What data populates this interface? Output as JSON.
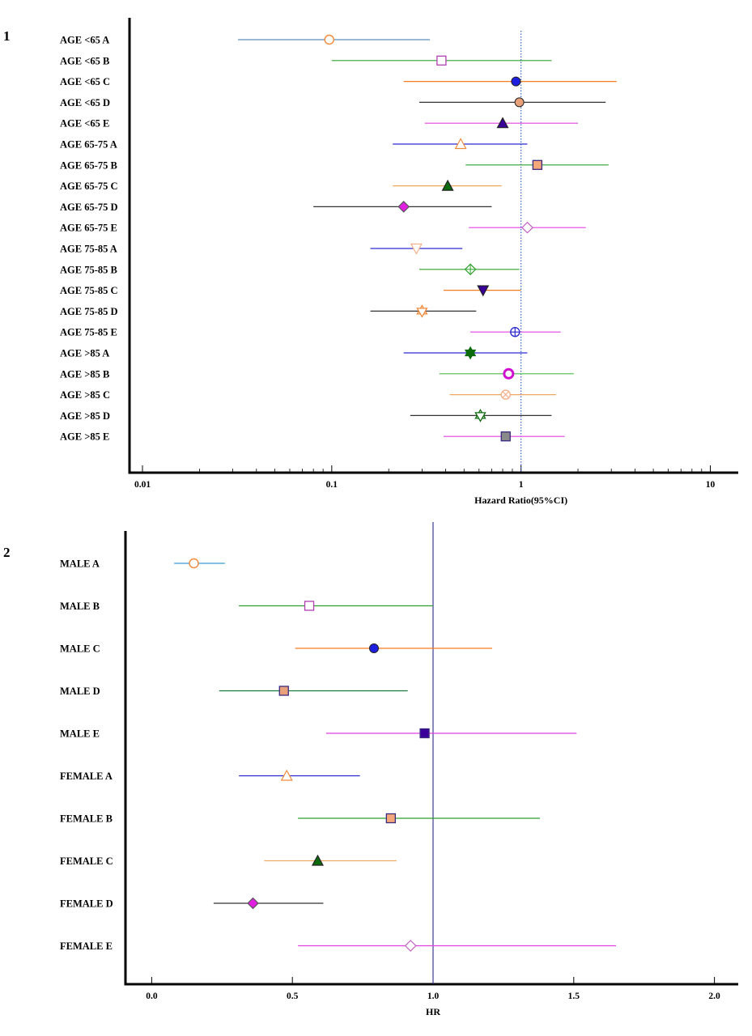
{
  "chart_data": [
    {
      "type": "forest",
      "panel_label": "1",
      "xlabel": "Hazard Ratio(95%CI)",
      "xscale": "log",
      "xlim": [
        0.01,
        12
      ],
      "xticks": [
        0.01,
        0.1,
        1,
        10
      ],
      "xtick_labels": [
        "0.01",
        "0.1",
        "1",
        "10"
      ],
      "reference_line": 1,
      "reference_style": "dotted",
      "rows": [
        {
          "label": "AGE <65 A",
          "hr": 0.097,
          "lo": 0.032,
          "hi": 0.33,
          "line_color": "#5b8fbd",
          "marker": "circle-open",
          "marker_color": "#f08a3c"
        },
        {
          "label": "AGE <65 B",
          "hr": 0.38,
          "lo": 0.1,
          "hi": 1.45,
          "line_color": "#2ca02c",
          "marker": "square-open",
          "marker_color": "#b03fb0"
        },
        {
          "label": "AGE <65 C",
          "hr": 0.94,
          "lo": 0.24,
          "hi": 3.2,
          "line_color": "#f57c1f",
          "marker": "circle-filled",
          "marker_color": "#1f1fe0"
        },
        {
          "label": "AGE <65 D",
          "hr": 0.98,
          "lo": 0.29,
          "hi": 2.8,
          "line_color": "#333333",
          "marker": "circle-filled",
          "marker_color": "#e8a07a"
        },
        {
          "label": "AGE <65 E",
          "hr": 0.8,
          "lo": 0.31,
          "hi": 2.0,
          "line_color": "#e040e0",
          "marker": "triangle-filled",
          "marker_color": "#3a009a"
        },
        {
          "label": "AGE 65-75 A",
          "hr": 0.48,
          "lo": 0.21,
          "hi": 1.08,
          "line_color": "#2a2ad0",
          "marker": "triangle-open",
          "marker_color": "#f08a3c"
        },
        {
          "label": "AGE 65-75 B",
          "hr": 1.22,
          "lo": 0.51,
          "hi": 2.9,
          "line_color": "#2ca02c",
          "marker": "square-filled",
          "marker_color": "#f4a87a"
        },
        {
          "label": "AGE 65-75 C",
          "hr": 0.41,
          "lo": 0.21,
          "hi": 0.79,
          "line_color": "#f0a860",
          "marker": "triangle-filled",
          "marker_color": "#0d6b0d"
        },
        {
          "label": "AGE 65-75 D",
          "hr": 0.24,
          "lo": 0.08,
          "hi": 0.7,
          "line_color": "#333333",
          "marker": "diamond-filled",
          "marker_color": "#e020e0"
        },
        {
          "label": "AGE 65-75 E",
          "hr": 1.08,
          "lo": 0.53,
          "hi": 2.2,
          "line_color": "#e040e0",
          "marker": "diamond-open",
          "marker_color": "#c060c0"
        },
        {
          "label": "AGE 75-85 A",
          "hr": 0.28,
          "lo": 0.16,
          "hi": 0.49,
          "line_color": "#2a2ad0",
          "marker": "triangle-down-open",
          "marker_color": "#f5b08a"
        },
        {
          "label": "AGE 75-85 B",
          "hr": 0.54,
          "lo": 0.29,
          "hi": 0.98,
          "line_color": "#2ca02c",
          "marker": "diamond-cross",
          "marker_color": "#2ca02c"
        },
        {
          "label": "AGE 75-85 C",
          "hr": 0.63,
          "lo": 0.39,
          "hi": 1.0,
          "line_color": "#f57c1f",
          "marker": "triangle-down-filled",
          "marker_color": "#3a009a"
        },
        {
          "label": "AGE 75-85 D",
          "hr": 0.3,
          "lo": 0.16,
          "hi": 0.58,
          "line_color": "#333333",
          "marker": "star-open",
          "marker_color": "#f08a3c"
        },
        {
          "label": "AGE 75-85 E",
          "hr": 0.93,
          "lo": 0.54,
          "hi": 1.62,
          "line_color": "#e040e0",
          "marker": "circle-cross",
          "marker_color": "#2a2ad0"
        },
        {
          "label": "AGE >85 A",
          "hr": 0.54,
          "lo": 0.24,
          "hi": 1.08,
          "line_color": "#2a2ad0",
          "marker": "star-filled",
          "marker_color": "#0d6b0d"
        },
        {
          "label": "AGE >85 B",
          "hr": 0.86,
          "lo": 0.37,
          "hi": 1.9,
          "line_color": "#4cbb4c",
          "marker": "circle-ring",
          "marker_color": "#d010d0"
        },
        {
          "label": "AGE >85 C",
          "hr": 0.83,
          "lo": 0.42,
          "hi": 1.53,
          "line_color": "#f0a860",
          "marker": "circle-x",
          "marker_color": "#f5b08a"
        },
        {
          "label": "AGE >85 D",
          "hr": 0.61,
          "lo": 0.26,
          "hi": 1.45,
          "line_color": "#333333",
          "marker": "star-open",
          "marker_color": "#0d6b0d"
        },
        {
          "label": "AGE >85 E",
          "hr": 0.83,
          "lo": 0.39,
          "hi": 1.7,
          "line_color": "#e040e0",
          "marker": "square-filled",
          "marker_color": "#8a8a8a"
        }
      ]
    },
    {
      "type": "forest",
      "panel_label": "2",
      "xlabel": "HR",
      "xscale": "linear",
      "xlim": [
        -0.05,
        2.05
      ],
      "xticks": [
        0.0,
        0.5,
        1.0,
        1.5,
        2.0
      ],
      "xtick_labels": [
        "0.0",
        "0.5",
        "1.0",
        "1.5",
        "2.0"
      ],
      "reference_line": 1.0,
      "reference_style": "solid",
      "rows": [
        {
          "label": "MALE A",
          "hr": 0.15,
          "lo": 0.08,
          "hi": 0.26,
          "line_color": "#3a9ad0",
          "marker": "circle-open",
          "marker_color": "#f08a3c"
        },
        {
          "label": "MALE B",
          "hr": 0.56,
          "lo": 0.31,
          "hi": 1.0,
          "line_color": "#2ca02c",
          "marker": "square-open",
          "marker_color": "#b03fb0"
        },
        {
          "label": "MALE C",
          "hr": 0.79,
          "lo": 0.51,
          "hi": 1.21,
          "line_color": "#f57c1f",
          "marker": "circle-filled",
          "marker_color": "#1f1fe0"
        },
        {
          "label": "MALE D",
          "hr": 0.47,
          "lo": 0.24,
          "hi": 0.91,
          "line_color": "#1e7a3a",
          "marker": "square-filled",
          "marker_color": "#e8a07a"
        },
        {
          "label": "MALE E",
          "hr": 0.97,
          "lo": 0.62,
          "hi": 1.51,
          "line_color": "#e040e0",
          "marker": "square-filled",
          "marker_color": "#3a009a"
        },
        {
          "label": "FEMALE A",
          "hr": 0.48,
          "lo": 0.31,
          "hi": 0.74,
          "line_color": "#2a2ad0",
          "marker": "triangle-open",
          "marker_color": "#f08a3c"
        },
        {
          "label": "FEMALE B",
          "hr": 0.85,
          "lo": 0.52,
          "hi": 1.38,
          "line_color": "#2ca02c",
          "marker": "square-filled",
          "marker_color": "#f4a87a"
        },
        {
          "label": "FEMALE C",
          "hr": 0.59,
          "lo": 0.4,
          "hi": 0.87,
          "line_color": "#f0a860",
          "marker": "triangle-filled",
          "marker_color": "#0d6b0d"
        },
        {
          "label": "FEMALE D",
          "hr": 0.36,
          "lo": 0.22,
          "hi": 0.61,
          "line_color": "#333333",
          "marker": "diamond-filled",
          "marker_color": "#e020e0"
        },
        {
          "label": "FEMALE E",
          "hr": 0.92,
          "lo": 0.52,
          "hi": 1.65,
          "line_color": "#e040e0",
          "marker": "diamond-open",
          "marker_color": "#c060c0"
        }
      ]
    }
  ]
}
